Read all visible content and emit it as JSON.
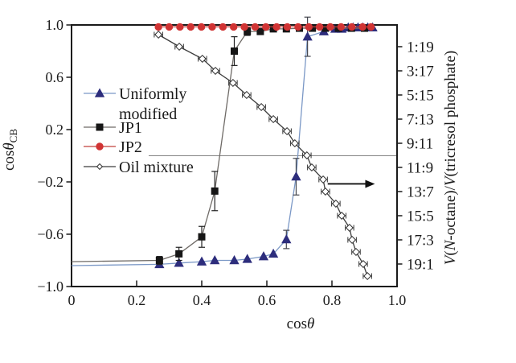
{
  "figure": {
    "background": "#ffffff",
    "frame_color": "#1a1a1a",
    "text_color": "#1a1a1a"
  },
  "chart_data": {
    "type": "line",
    "title": "",
    "grid": false,
    "x_axis": {
      "label": "cosθ",
      "label_segments": [
        {
          "t": "cos"
        },
        {
          "t": "θ",
          "i": 1
        }
      ],
      "range": [
        0,
        1.0
      ],
      "ticks": [
        {
          "v": 0,
          "label": "0"
        },
        {
          "v": 0.2,
          "label": "0.2"
        },
        {
          "v": 0.4,
          "label": "0.4"
        },
        {
          "v": 0.6,
          "label": "0.6"
        },
        {
          "v": 0.8,
          "label": "0.8"
        },
        {
          "v": 1.0,
          "label": "1.0"
        }
      ]
    },
    "left_axis": {
      "label": "cosθCB",
      "label_segments": [
        {
          "t": "cos"
        },
        {
          "t": "θ",
          "i": 1
        },
        {
          "t": "CB",
          "sub": 1
        }
      ],
      "range": [
        -1.0,
        1.0
      ],
      "ticks": [
        {
          "v": 1.0,
          "label": "1.0"
        },
        {
          "v": 0.6,
          "label": "0.6"
        },
        {
          "v": 0.2,
          "label": "0.2"
        },
        {
          "v": -0.2,
          "label": "−0.2"
        },
        {
          "v": -0.6,
          "label": "−0.6"
        },
        {
          "v": -1.0,
          "label": "−1.0"
        }
      ]
    },
    "right_axis": {
      "label": "V(N-octane)/V(tricresol phosphate)",
      "label_segments": [
        {
          "t": "V",
          "i": 1
        },
        {
          "t": "("
        },
        {
          "t": "N",
          "i": 1
        },
        {
          "t": "-octane)/"
        },
        {
          "t": "V",
          "i": 1
        },
        {
          "t": "(tricresol phosphate)"
        }
      ],
      "range_parts_octane": [
        0,
        20
      ],
      "ticks": [
        {
          "v": 1,
          "label": "1:19"
        },
        {
          "v": 3,
          "label": "3:17"
        },
        {
          "v": 5,
          "label": "5:15"
        },
        {
          "v": 7,
          "label": "7:13"
        },
        {
          "v": 9,
          "label": "9:11"
        },
        {
          "v": 11,
          "label": "11:9"
        },
        {
          "v": 13,
          "label": "13:7"
        },
        {
          "v": 15,
          "label": "15:5"
        },
        {
          "v": 17,
          "label": "17:3"
        },
        {
          "v": 19,
          "label": "19:1"
        }
      ]
    },
    "reference_line": {
      "y": 0,
      "x_start": 0.237,
      "x_end": 1.0,
      "color": "#858585"
    },
    "annotation_arrow": {
      "meaning": "oil-mixture-series-reads-right-axis",
      "x_start": 0.787,
      "x_end": 0.932,
      "y_left_axis": -0.215,
      "color": "#111111"
    },
    "series": [
      {
        "name": "Uniformly modified",
        "legend_label_lines": [
          "Uniformly",
          "modified"
        ],
        "axis": "left",
        "marker": "triangle-filled",
        "marker_color": "#2d2d7c",
        "line_color": "#7b98c6",
        "error": "y",
        "error_color": "#44464e",
        "line_prefix": [
          [
            0,
            -0.84
          ]
        ],
        "points": [
          [
            0.27,
            -0.83,
            0
          ],
          [
            0.33,
            -0.82,
            0
          ],
          [
            0.4,
            -0.81,
            0
          ],
          [
            0.44,
            -0.8,
            0
          ],
          [
            0.5,
            -0.8,
            0
          ],
          [
            0.54,
            -0.79,
            0
          ],
          [
            0.59,
            -0.77,
            0
          ],
          [
            0.62,
            -0.75,
            0
          ],
          [
            0.66,
            -0.64,
            0.07
          ],
          [
            0.69,
            -0.16,
            0.14
          ],
          [
            0.725,
            0.91,
            0.15
          ],
          [
            0.775,
            0.95,
            0
          ],
          [
            0.81,
            0.97,
            0
          ],
          [
            0.83,
            0.97,
            0
          ],
          [
            0.85,
            0.98,
            0
          ],
          [
            0.865,
            0.98,
            0
          ],
          [
            0.88,
            0.98,
            0
          ],
          [
            0.895,
            0.98,
            0
          ],
          [
            0.91,
            0.98,
            0
          ],
          [
            0.925,
            0.98,
            0
          ]
        ]
      },
      {
        "name": "JP1",
        "legend_label_lines": [
          "JP1"
        ],
        "axis": "left",
        "marker": "square-filled",
        "marker_color": "#161616",
        "line_color": "#6f6b67",
        "error": "y",
        "error_color": "#222222",
        "line_prefix": [
          [
            0,
            -0.81
          ]
        ],
        "points": [
          [
            0.27,
            -0.8,
            0.03
          ],
          [
            0.33,
            -0.75,
            0.05
          ],
          [
            0.4,
            -0.62,
            0.08
          ],
          [
            0.44,
            -0.27,
            0.15
          ],
          [
            0.5,
            0.8,
            0.11
          ],
          [
            0.54,
            0.95,
            0.03
          ],
          [
            0.58,
            0.95,
            0
          ],
          [
            0.62,
            0.97,
            0
          ],
          [
            0.66,
            0.97,
            0
          ],
          [
            0.7,
            0.975,
            0
          ],
          [
            0.74,
            0.975,
            0
          ],
          [
            0.78,
            0.975,
            0
          ],
          [
            0.82,
            0.975,
            0
          ],
          [
            0.86,
            0.975,
            0
          ],
          [
            0.9,
            0.975,
            0
          ]
        ]
      },
      {
        "name": "JP2",
        "legend_label_lines": [
          "JP2"
        ],
        "axis": "left",
        "marker": "circle-filled",
        "marker_color": "#d13434",
        "line_color": "#c2413c",
        "error": "none",
        "error_color": "#c2413c",
        "points": [
          [
            0.267,
            0.985
          ],
          [
            0.3,
            0.985
          ],
          [
            0.333,
            0.985
          ],
          [
            0.366,
            0.985
          ],
          [
            0.399,
            0.985
          ],
          [
            0.432,
            0.985
          ],
          [
            0.465,
            0.985
          ],
          [
            0.498,
            0.985
          ],
          [
            0.531,
            0.985
          ],
          [
            0.564,
            0.985
          ],
          [
            0.597,
            0.985
          ],
          [
            0.63,
            0.985
          ],
          [
            0.663,
            0.985
          ],
          [
            0.696,
            0.985
          ],
          [
            0.729,
            0.985
          ],
          [
            0.762,
            0.985
          ],
          [
            0.795,
            0.985
          ],
          [
            0.828,
            0.985
          ],
          [
            0.861,
            0.985
          ],
          [
            0.894,
            0.985
          ],
          [
            0.92,
            0.985
          ]
        ]
      },
      {
        "name": "Oil mixture",
        "legend_label_lines": [
          "Oil mixture"
        ],
        "axis": "right",
        "marker": "diamond-open",
        "marker_color": "#ffffff",
        "marker_stroke": "#2b2b2b",
        "line_color": "#3c3c3c",
        "error": "x",
        "error_color": "#333333",
        "points_note": "y value is parts N-octane out of 20 (ratio octane:tricresol phosphate)",
        "points": [
          [
            0.267,
            0,
            0.013
          ],
          [
            0.331,
            1,
            0.013
          ],
          [
            0.402,
            2,
            0.013
          ],
          [
            0.442,
            3,
            0.013
          ],
          [
            0.496,
            4,
            0.013
          ],
          [
            0.538,
            5,
            0.013
          ],
          [
            0.583,
            6,
            0.013
          ],
          [
            0.62,
            7,
            0.013
          ],
          [
            0.662,
            8,
            0.013
          ],
          [
            0.686,
            9,
            0.013
          ],
          [
            0.723,
            10,
            0.013
          ],
          [
            0.738,
            11,
            0.013
          ],
          [
            0.773,
            12,
            0.013
          ],
          [
            0.78,
            13,
            0.013
          ],
          [
            0.812,
            14,
            0.013
          ],
          [
            0.83,
            15,
            0.013
          ],
          [
            0.854,
            16,
            0.013
          ],
          [
            0.862,
            17,
            0.013
          ],
          [
            0.874,
            18,
            0.013
          ],
          [
            0.896,
            19,
            0.013
          ],
          [
            0.909,
            20,
            0.013
          ]
        ]
      }
    ],
    "legend_position": "upper-left-inside"
  }
}
